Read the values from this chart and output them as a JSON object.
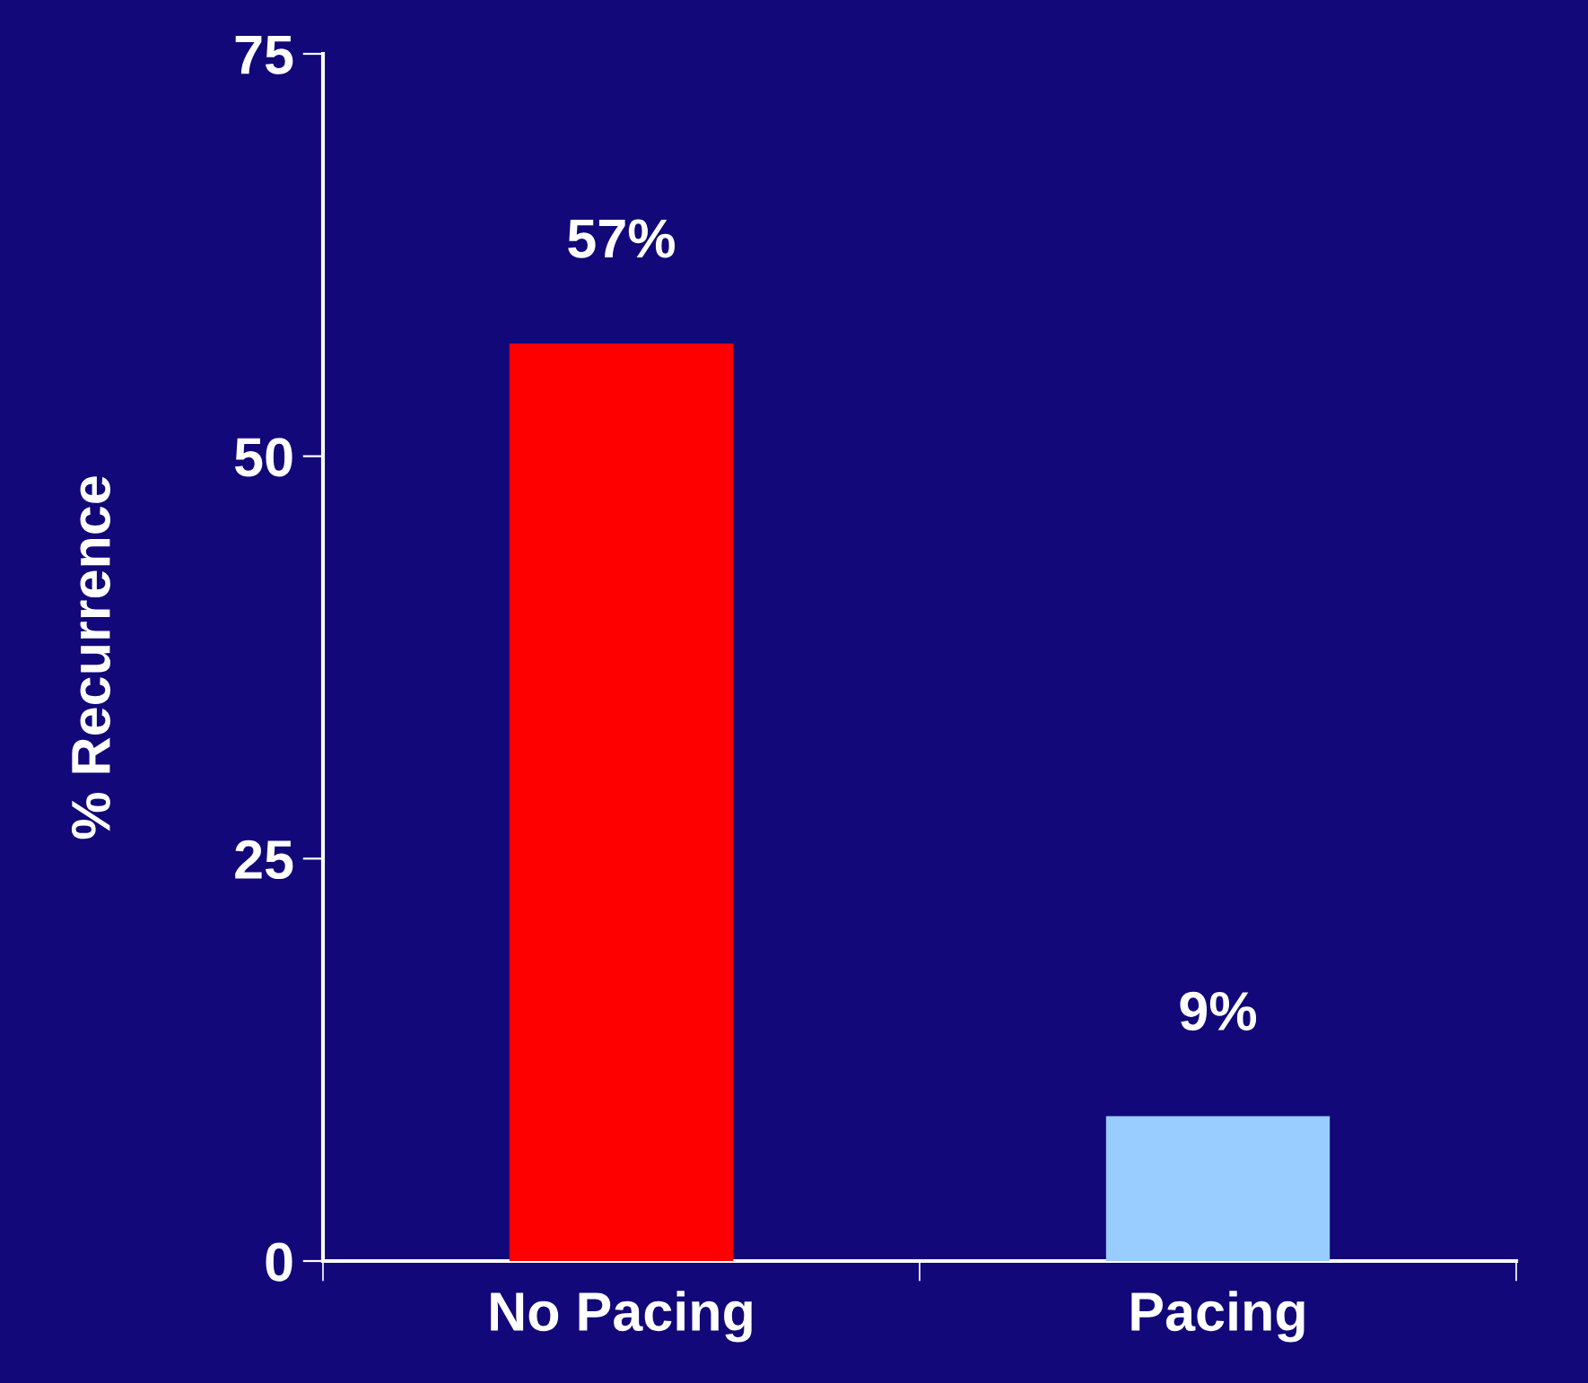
{
  "chart_data": {
    "type": "bar",
    "ylabel": "% Recurrence",
    "categories": [
      "No Pacing",
      "Pacing"
    ],
    "values": [
      57,
      9
    ],
    "colors": [
      "#ff0000",
      "#99ccff"
    ],
    "value_labels": [
      "57%",
      "9%"
    ],
    "ylim": [
      0,
      75
    ],
    "yticks": [
      0,
      25,
      50,
      75
    ],
    "grid": false,
    "legend": false
  }
}
